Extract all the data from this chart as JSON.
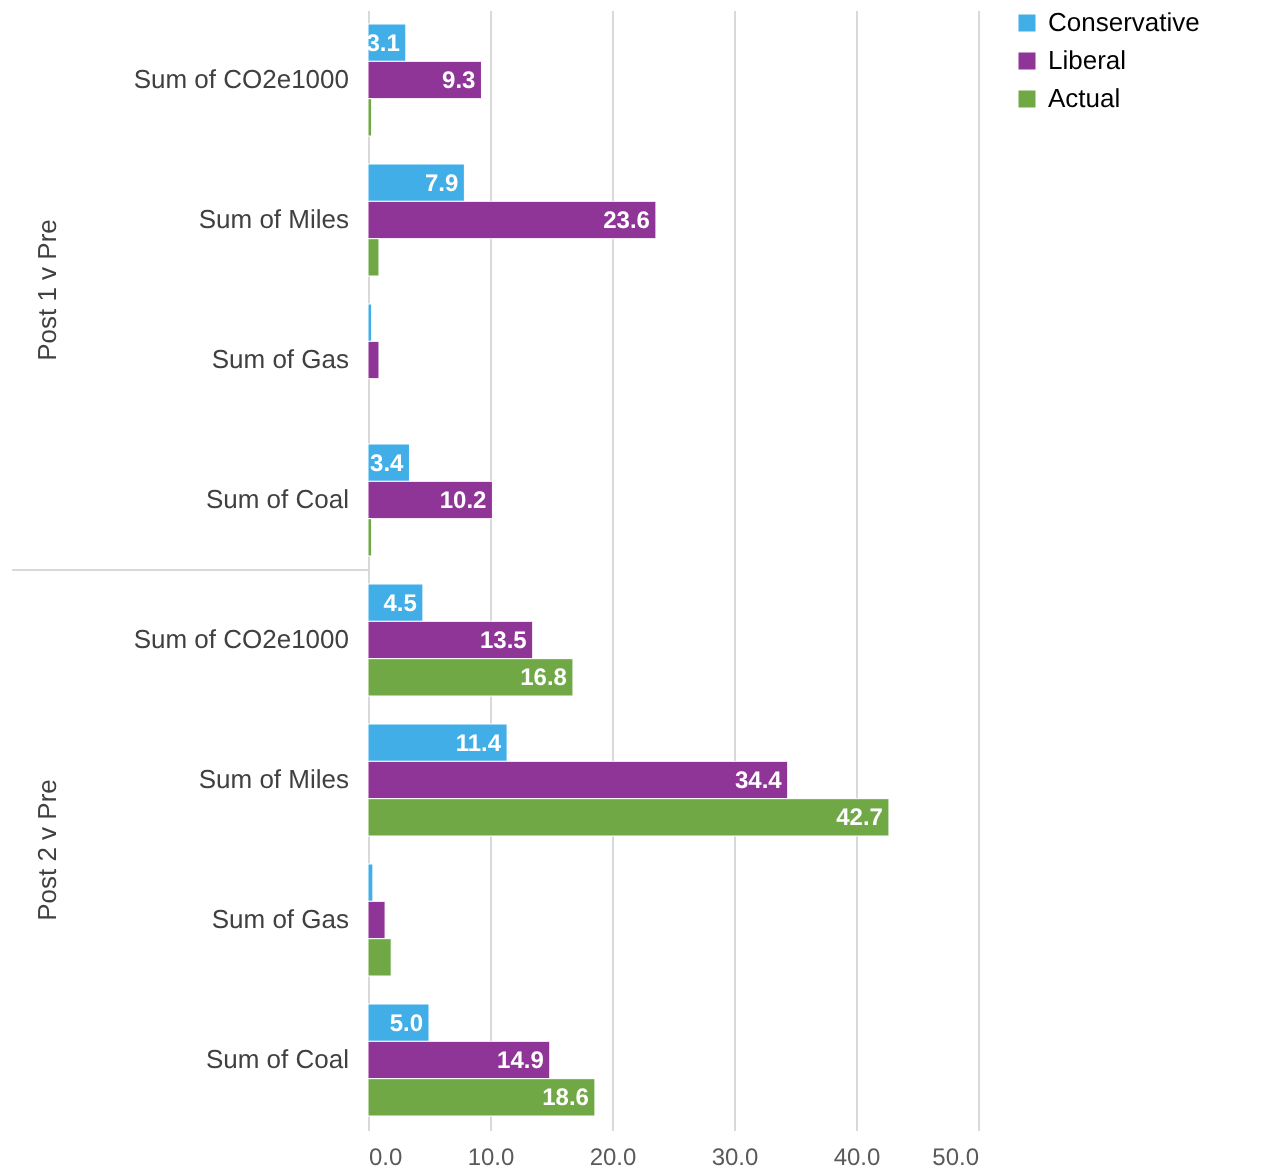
{
  "chart_data": {
    "type": "bar",
    "orientation": "horizontal",
    "categories": [
      "Sum of CO2e1000",
      "Sum of Miles",
      "Sum of Gas",
      "Sum of Coal",
      "Sum of CO2e1000",
      "Sum of Miles",
      "Sum of Gas",
      "Sum of Coal"
    ],
    "series": [
      {
        "name": "Conservative",
        "color": "#41aee8",
        "values": [
          3.1,
          7.9,
          0.3,
          3.4,
          4.5,
          11.4,
          0.4,
          5.0
        ],
        "value_labels": [
          "3.1",
          "7.9",
          null,
          "3.4",
          "4.5",
          "11.4",
          null,
          "5.0"
        ]
      },
      {
        "name": "Liberal",
        "color": "#8e3597",
        "values": [
          9.3,
          23.6,
          0.9,
          10.2,
          13.5,
          34.4,
          1.4,
          14.9
        ],
        "value_labels": [
          "9.3",
          "23.6",
          null,
          "10.2",
          "13.5",
          "34.4",
          null,
          "14.9"
        ]
      },
      {
        "name": "Actual",
        "color": "#70a846",
        "values": [
          0.3,
          0.9,
          null,
          0.3,
          16.8,
          42.7,
          1.9,
          18.6
        ],
        "value_labels": [
          null,
          null,
          null,
          null,
          "16.8",
          "42.7",
          null,
          "18.6"
        ]
      }
    ],
    "annotations": [
      "Post 1 v Pre",
      "Post 2 v Pre"
    ],
    "xlim": [
      0,
      50
    ],
    "xticks": [
      {
        "value": 0,
        "label": "0.0"
      },
      {
        "value": 10,
        "label": "10.0"
      },
      {
        "value": 20,
        "label": "20.0"
      },
      {
        "value": 30,
        "label": "30.0"
      },
      {
        "value": 40,
        "label": "40.0"
      },
      {
        "value": 50,
        "label": "50.0"
      }
    ],
    "grid": "x",
    "legend": "right"
  }
}
